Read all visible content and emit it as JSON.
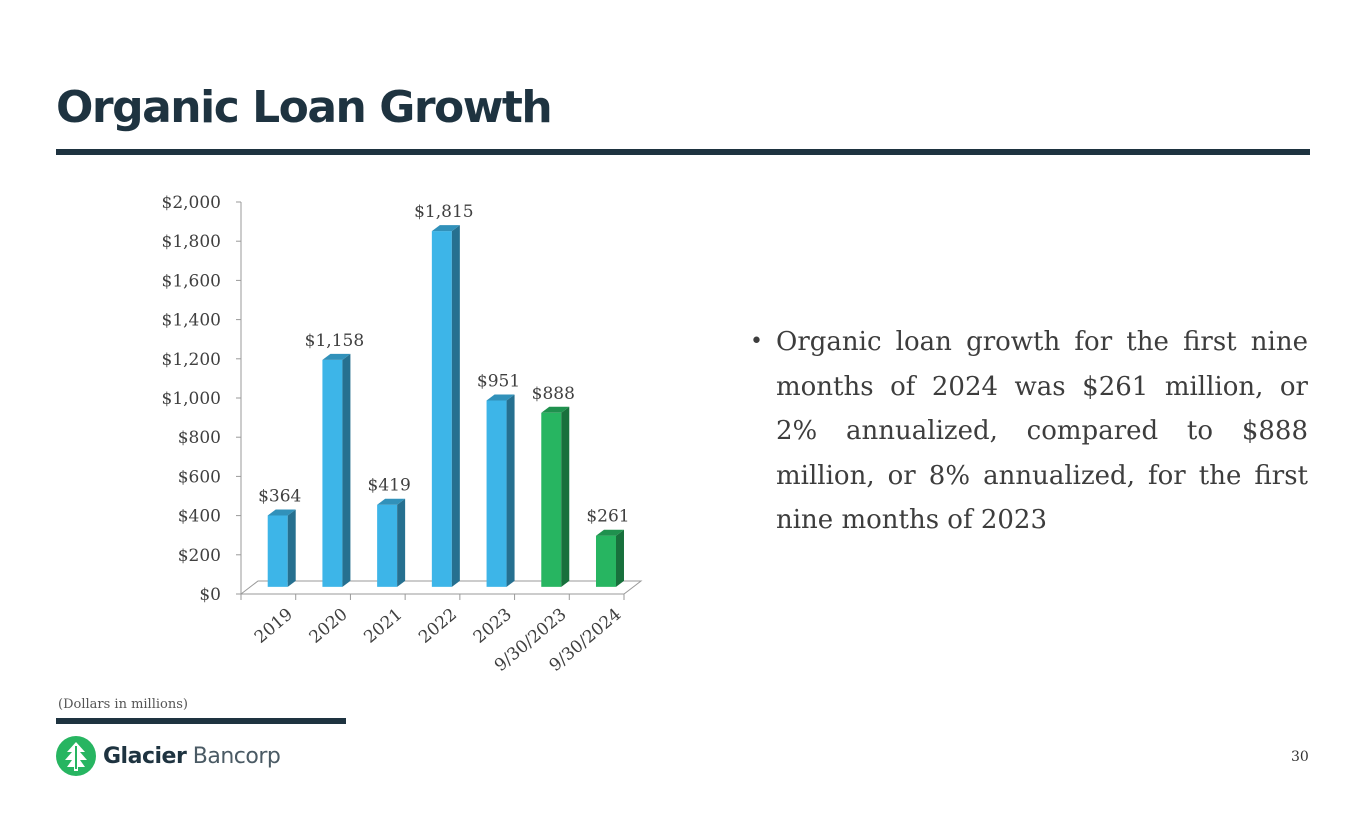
{
  "slide": {
    "title": "Organic Loan Growth",
    "bullet": "Organic loan growth for the first nine months of 2024 was $261 million, or 2% annualized,  compared to $888 million, or 8% annualized, for the first nine months of 2023",
    "footnote": "(Dollars in millions)",
    "page_number": "30",
    "logo": {
      "bold": "Glacier",
      "light": " Bancorp",
      "icon": "glacier-tree-logo-icon"
    },
    "colors": {
      "dark": "#1e3340",
      "blue": "#3db5e8",
      "green": "#27b561"
    }
  },
  "chart_data": {
    "type": "bar",
    "categories": [
      "2019",
      "2020",
      "2021",
      "2022",
      "2023",
      "9/30/2023",
      "9/30/2024"
    ],
    "values": [
      364,
      1158,
      419,
      1815,
      951,
      888,
      261
    ],
    "value_labels": [
      "$364",
      "$1,158",
      "$419",
      "$1,815",
      "$951",
      "$888",
      "$261"
    ],
    "bar_colors": [
      "#3db5e8",
      "#3db5e8",
      "#3db5e8",
      "#3db5e8",
      "#3db5e8",
      "#27b561",
      "#27b561"
    ],
    "y_ticks": [
      0,
      200,
      400,
      600,
      800,
      1000,
      1200,
      1400,
      1600,
      1800,
      2000
    ],
    "y_tick_labels": [
      "$0",
      "$200",
      "$400",
      "$600",
      "$800",
      "$1,000",
      "$1,200",
      "$1,400",
      "$1,600",
      "$1,800",
      "$2,000"
    ],
    "ylim": [
      0,
      2000
    ],
    "title": "",
    "xlabel": "",
    "ylabel": "",
    "grid": false,
    "style": "3d-column"
  }
}
